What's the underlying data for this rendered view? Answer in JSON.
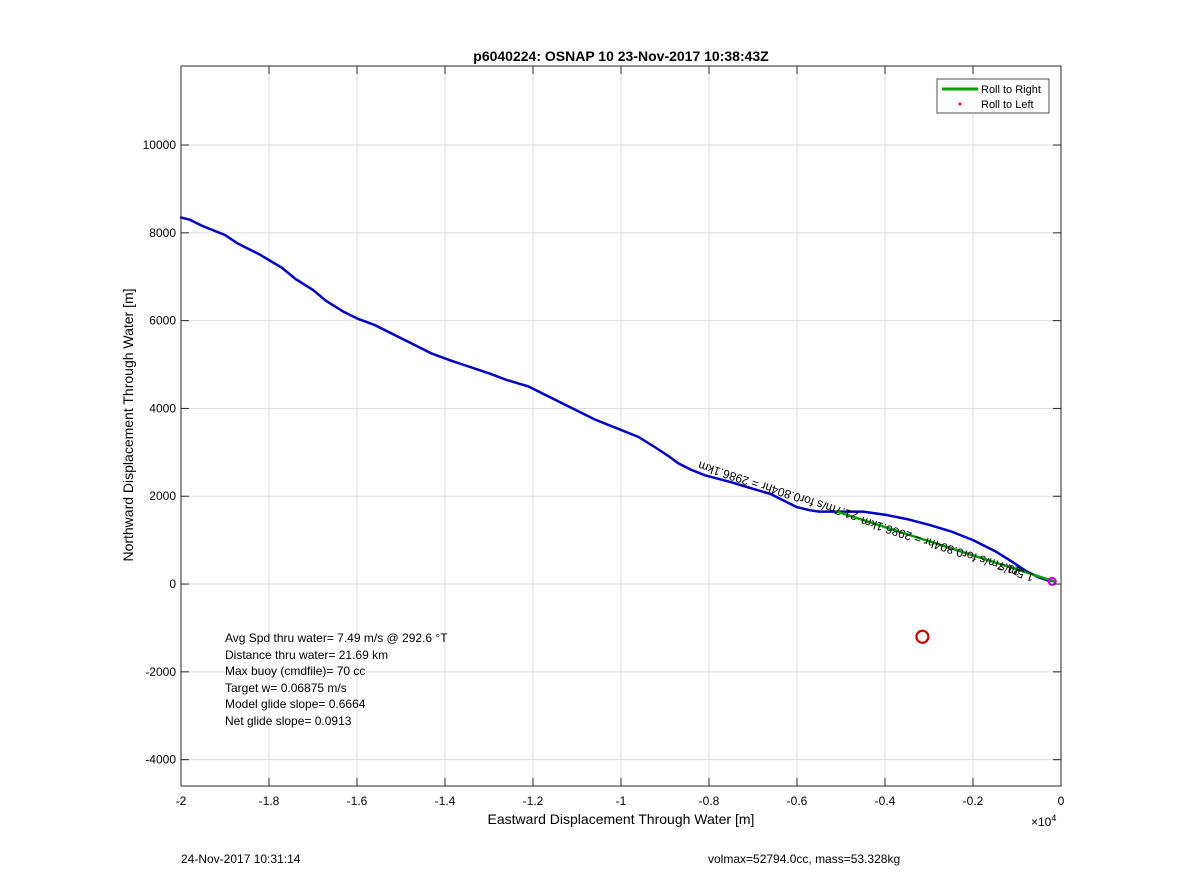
{
  "chart_data": {
    "type": "line",
    "title": "p6040224: OSNAP 10 23-Nov-2017 10:38:43Z",
    "xlabel": "Eastward Displacement Through Water [m]",
    "ylabel": "Northward Displacement Through Water [m]",
    "x_exponent_label": "×10",
    "x_exponent_power": "4",
    "xlim": [
      -2,
      0
    ],
    "ylim": [
      -4600,
      11800
    ],
    "xticks": [
      -2,
      -1.8,
      -1.6,
      -1.4,
      -1.2,
      -1,
      -0.8,
      -0.6,
      -0.4,
      -0.2,
      0
    ],
    "xtick_labels": [
      "-2",
      "-1.8",
      "-1.6",
      "-1.4",
      "-1.2",
      "-1",
      "-0.8",
      "-0.6",
      "-0.4",
      "-0.2",
      "0"
    ],
    "yticks": [
      -4000,
      -2000,
      0,
      2000,
      4000,
      6000,
      8000,
      10000
    ],
    "ytick_labels": [
      "-4000",
      "-2000",
      "0",
      "2000",
      "4000",
      "6000",
      "8000",
      "10000"
    ],
    "grid": true,
    "legend": {
      "position": "top-right",
      "entries": [
        {
          "label": "Roll to Right",
          "color": "#00a000",
          "style": "line"
        },
        {
          "label": "Roll to Left",
          "color": "#ff0000",
          "style": "dot"
        }
      ]
    },
    "series": [
      {
        "color": "#0000c0",
        "x": [
          -2.0,
          -1.98,
          -1.95,
          -1.9,
          -1.87,
          -1.82,
          -1.77,
          -1.74,
          -1.7,
          -1.67,
          -1.63,
          -1.6,
          -1.56,
          -1.51,
          -1.47,
          -1.43,
          -1.39,
          -1.36,
          -1.3,
          -1.26,
          -1.21,
          -1.18,
          -1.14,
          -1.1,
          -1.06,
          -1.01,
          -0.96,
          -0.92,
          -0.89,
          -0.87,
          -0.84,
          -0.81,
          -0.78,
          -0.75,
          -0.71,
          -0.66,
          -0.63,
          -0.6,
          -0.57,
          -0.55,
          -0.51,
          -0.45,
          -0.4,
          -0.35,
          -0.3,
          -0.25,
          -0.2,
          -0.15,
          -0.11,
          -0.08,
          -0.05,
          -0.03,
          -0.015
        ],
        "y": [
          8350,
          8300,
          8150,
          7950,
          7750,
          7500,
          7200,
          6950,
          6700,
          6450,
          6200,
          6050,
          5900,
          5650,
          5450,
          5250,
          5100,
          5000,
          4800,
          4650,
          4500,
          4350,
          4150,
          3950,
          3750,
          3550,
          3350,
          3100,
          2900,
          2750,
          2600,
          2480,
          2400,
          2320,
          2200,
          2050,
          1900,
          1750,
          1680,
          1650,
          1650,
          1650,
          1580,
          1480,
          1350,
          1200,
          1000,
          750,
          500,
          300,
          150,
          80,
          60
        ]
      },
      {
        "color": "#00a000",
        "x": [
          -0.51,
          -0.015
        ],
        "y": [
          1650,
          60
        ]
      }
    ],
    "annotations": [
      {
        "text": "21.7m/s for0.804hr = 2986.1km",
        "x": -0.46,
        "y": 1620,
        "rotation": 18,
        "color": "#000000"
      },
      {
        "text": "21.7m/s for0.804hr = 2986.1km",
        "x": -0.09,
        "y": 360,
        "rotation": 18,
        "color": "#000000"
      },
      {
        "text": "1.5m/s",
        "x": -0.06,
        "y": 230,
        "rotation": 18,
        "color": "#000000"
      }
    ],
    "markers": [
      {
        "shape": "circle",
        "x": -0.315,
        "y": -1200,
        "color": "#cc0000"
      },
      {
        "shape": "circle",
        "x": -0.02,
        "y": 60,
        "color": "#cc00cc"
      }
    ],
    "stats": [
      "Avg Spd thru water=  7.49 m/s @ 292.6 °T",
      "Distance thru water= 21.69 km",
      "Max buoy (cmdfile)= 70 cc",
      "Target w= 0.06875 m/s",
      "Model glide slope= 0.6664",
      "Net glide slope= 0.0913"
    ]
  },
  "footer": {
    "left": "24-Nov-2017 10:31:14",
    "right": "volmax=52794.0cc, mass=53.328kg"
  }
}
